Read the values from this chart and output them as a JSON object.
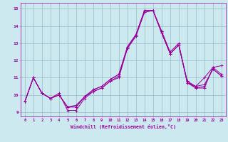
{
  "xlabel": "Windchill (Refroidissement éolien,°C)",
  "xlim": [
    -0.5,
    23.5
  ],
  "ylim": [
    8.75,
    15.35
  ],
  "yticks": [
    9,
    10,
    11,
    12,
    13,
    14,
    15
  ],
  "xticks": [
    0,
    1,
    2,
    3,
    4,
    5,
    6,
    7,
    8,
    9,
    10,
    11,
    12,
    13,
    14,
    15,
    16,
    17,
    18,
    19,
    20,
    21,
    22,
    23
  ],
  "background_color": "#cce9f0",
  "line_color": "#990099",
  "grid_color": "#99bbcc",
  "series": [
    [
      9.6,
      11.0,
      10.1,
      9.8,
      10.1,
      9.1,
      9.1,
      9.8,
      10.2,
      10.4,
      10.8,
      11.1,
      12.8,
      13.5,
      14.9,
      14.9,
      13.7,
      12.5,
      13.0,
      10.7,
      10.4,
      10.4,
      11.6,
      11.7
    ],
    [
      9.6,
      11.0,
      10.1,
      9.8,
      10.0,
      9.3,
      9.4,
      9.9,
      10.3,
      10.5,
      10.9,
      11.2,
      12.7,
      13.4,
      14.8,
      14.9,
      13.6,
      12.4,
      12.9,
      10.8,
      10.4,
      10.5,
      11.5,
      11.1
    ],
    [
      9.6,
      11.0,
      10.1,
      9.8,
      10.0,
      9.3,
      9.3,
      9.9,
      10.2,
      10.4,
      10.8,
      11.0,
      12.7,
      13.5,
      14.9,
      14.9,
      13.7,
      12.4,
      12.9,
      10.7,
      10.5,
      10.6,
      11.5,
      11.1
    ],
    [
      9.6,
      11.0,
      10.1,
      9.8,
      10.0,
      9.3,
      9.3,
      9.9,
      10.3,
      10.5,
      10.9,
      11.2,
      12.8,
      13.5,
      14.9,
      14.9,
      13.6,
      12.4,
      12.9,
      10.8,
      10.5,
      11.0,
      11.6,
      11.2
    ]
  ]
}
